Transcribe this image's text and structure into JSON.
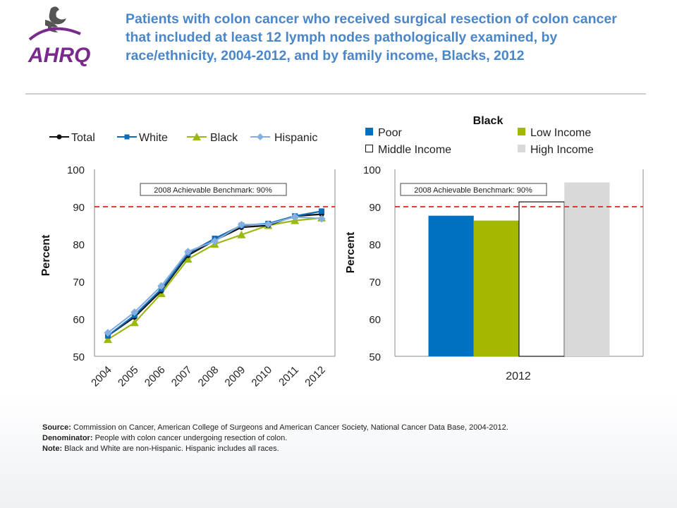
{
  "header": {
    "logo_text": "AHRQ",
    "title": "Patients with colon cancer who received surgical resection of colon cancer that included at least 12 lymph nodes pathologically examined, by race/ethnicity, 2004-2012, and by family income, Blacks, 2012"
  },
  "colors": {
    "title": "#4a86c8",
    "benchmark": "#e0201b",
    "total": "#111111",
    "white": "#0c6db8",
    "black": "#9aba10",
    "hispanic": "#86aee0",
    "poor": "#0070c0",
    "low_income": "#a5b800",
    "middle_income": "#ffffff",
    "high_income": "#d9d9d9"
  },
  "chart_data": [
    {
      "type": "line",
      "x": [
        "2004",
        "2005",
        "2006",
        "2007",
        "2008",
        "2009",
        "2010",
        "2011",
        "2012"
      ],
      "ylabel": "Percent",
      "ylim": [
        50,
        100
      ],
      "yticks": [
        "50",
        "60",
        "70",
        "80",
        "90",
        "100"
      ],
      "benchmark": {
        "value": 90,
        "label": "2008 Achievable Benchmark: 90%"
      },
      "legend_position": "top",
      "series": [
        {
          "name": "Total",
          "marker": "circle",
          "values": [
            55.5,
            60.5,
            67.5,
            77.0,
            81.0,
            84.5,
            85.0,
            87.5,
            88.0
          ]
        },
        {
          "name": "White",
          "marker": "square",
          "values": [
            55.5,
            61.0,
            68.0,
            77.5,
            81.5,
            85.0,
            85.5,
            87.5,
            88.8
          ]
        },
        {
          "name": "Black",
          "marker": "triangle",
          "values": [
            54.5,
            59.0,
            66.8,
            76.0,
            80.0,
            82.5,
            85.0,
            86.3,
            87.0
          ]
        },
        {
          "name": "Hispanic",
          "marker": "diamond",
          "values": [
            56.3,
            61.8,
            68.8,
            78.0,
            80.8,
            85.2,
            85.3,
            87.3,
            86.8
          ]
        }
      ]
    },
    {
      "type": "bar",
      "title": "Black",
      "categories": [
        "2012"
      ],
      "ylabel": "Percent",
      "ylim": [
        50,
        100
      ],
      "yticks": [
        "50",
        "60",
        "70",
        "80",
        "90",
        "100"
      ],
      "benchmark": {
        "value": 90,
        "label": "2008 Achievable Benchmark: 90%"
      },
      "legend_position": "top",
      "series": [
        {
          "name": "Poor",
          "values": [
            87.6
          ]
        },
        {
          "name": "Low Income",
          "values": [
            86.3
          ]
        },
        {
          "name": "Middle Income",
          "values": [
            91.3
          ]
        },
        {
          "name": "High Income",
          "values": [
            96.5
          ]
        }
      ]
    }
  ],
  "footer": {
    "source_label": "Source:",
    "source_text": "Commission on Cancer,  American College of Surgeons and American Cancer Society, National Cancer Data Base, 2004-2012.",
    "denominator_label": "Denominator:",
    "denominator_text": "People with colon cancer undergoing resection of colon.",
    "note_label": "Note:",
    "note_text": "Black and White are non-Hispanic. Hispanic  includes all races."
  }
}
